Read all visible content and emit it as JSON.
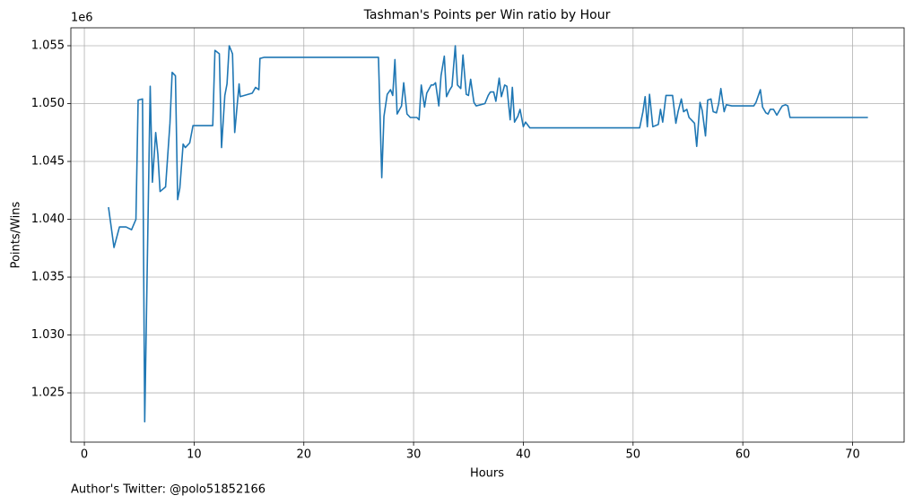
{
  "chart_data": {
    "type": "line",
    "title": "Tashman's Points per Win ratio by Hour",
    "xlabel": "Hours",
    "ylabel": "Points/Wins",
    "y_offset_label": "1e6",
    "footer": "Author's Twitter: @polo51852166",
    "color": "#1f77b4",
    "grid": true,
    "xlim": [
      -1.23,
      74.7
    ],
    "ylim": [
      1.02074,
      1.05655
    ],
    "xticks": [
      0,
      10,
      20,
      30,
      40,
      50,
      60,
      70
    ],
    "yticks": [
      1.025,
      {
        "value": 1.03,
        "label": "1.030"
      },
      1.035,
      {
        "value": 1.04,
        "label": "1.040"
      },
      1.045,
      {
        "value": 1.05,
        "label": "1.050"
      },
      1.055
    ],
    "x": [
      2.2,
      2.7,
      3.2,
      3.8,
      4.3,
      4.7,
      4.9,
      5.3,
      5.5,
      6.0,
      6.2,
      6.5,
      6.7,
      6.9,
      7.4,
      7.8,
      8.0,
      8.3,
      8.5,
      8.7,
      9.0,
      9.2,
      9.6,
      9.9,
      11.7,
      11.9,
      12.3,
      12.5,
      12.8,
      13.0,
      13.2,
      13.5,
      13.7,
      14.1,
      14.2,
      15.3,
      15.6,
      15.9,
      16.0,
      16.4,
      26.8,
      27.1,
      27.3,
      27.6,
      27.9,
      28.1,
      28.3,
      28.5,
      28.9,
      29.1,
      29.4,
      29.7,
      30.3,
      30.5,
      30.7,
      31.0,
      31.2,
      31.6,
      31.8,
      32.0,
      32.3,
      32.5,
      32.8,
      33.0,
      33.3,
      33.5,
      33.8,
      34.0,
      34.3,
      34.5,
      34.8,
      35.0,
      35.2,
      35.5,
      35.7,
      36.1,
      36.5,
      36.8,
      37.0,
      37.3,
      37.5,
      37.8,
      38.0,
      38.3,
      38.5,
      38.8,
      39.0,
      39.2,
      39.5,
      39.7,
      40.0,
      40.2,
      40.6,
      50.6,
      50.9,
      51.1,
      51.3,
      51.5,
      51.8,
      52.3,
      52.5,
      52.7,
      53.0,
      53.6,
      53.9,
      54.1,
      54.4,
      54.6,
      54.9,
      55.1,
      55.4,
      55.6,
      55.8,
      56.1,
      56.3,
      56.6,
      56.8,
      57.1,
      57.3,
      57.6,
      57.8,
      58.0,
      58.3,
      58.5,
      59.0,
      61.0,
      61.2,
      61.6,
      61.8,
      62.1,
      62.3,
      62.5,
      62.8,
      63.1,
      63.4,
      63.6,
      63.9,
      64.1,
      64.3,
      71.4
    ],
    "values": [
      1.04105,
      1.03756,
      1.03934,
      1.03934,
      1.0391,
      1.04,
      1.0503,
      1.0504,
      1.0225,
      1.0515,
      1.0432,
      1.0475,
      1.0456,
      1.0424,
      1.0428,
      1.0483,
      1.0527,
      1.0524,
      1.0417,
      1.0427,
      1.0465,
      1.0462,
      1.0466,
      1.0481,
      1.0481,
      1.0546,
      1.0543,
      1.0462,
      1.0507,
      1.0517,
      1.055,
      1.0543,
      1.0475,
      1.0517,
      1.0506,
      1.0509,
      1.0514,
      1.0512,
      1.0539,
      1.054,
      1.054,
      1.0436,
      1.0489,
      1.0508,
      1.0512,
      1.0507,
      1.0538,
      1.0491,
      1.0498,
      1.0518,
      1.0491,
      1.0488,
      1.0488,
      1.0486,
      1.0516,
      1.0497,
      1.0509,
      1.0516,
      1.0516,
      1.0518,
      1.0498,
      1.0524,
      1.0541,
      1.0506,
      1.0512,
      1.0515,
      1.055,
      1.0516,
      1.0513,
      1.0542,
      1.0508,
      1.0507,
      1.0521,
      1.0501,
      1.0498,
      1.0499,
      1.05,
      1.0507,
      1.051,
      1.051,
      1.0502,
      1.0522,
      1.0506,
      1.0516,
      1.0515,
      1.0486,
      1.0514,
      1.0484,
      1.0489,
      1.0495,
      1.048,
      1.0484,
      1.0479,
      1.0479,
      1.0493,
      1.0506,
      1.048,
      1.0508,
      1.048,
      1.0482,
      1.0495,
      1.0484,
      1.0507,
      1.0507,
      1.0483,
      1.0493,
      1.0504,
      1.0493,
      1.0495,
      1.0488,
      1.0485,
      1.0483,
      1.0463,
      1.0501,
      1.0494,
      1.0472,
      1.0503,
      1.0504,
      1.0493,
      1.0492,
      1.05,
      1.0513,
      1.0493,
      1.0499,
      1.0498,
      1.0498,
      1.0501,
      1.0512,
      1.0497,
      1.0492,
      1.0491,
      1.0495,
      1.0495,
      1.049,
      1.0495,
      1.0498,
      1.0499,
      1.0498,
      1.0488,
      1.0488
    ]
  }
}
